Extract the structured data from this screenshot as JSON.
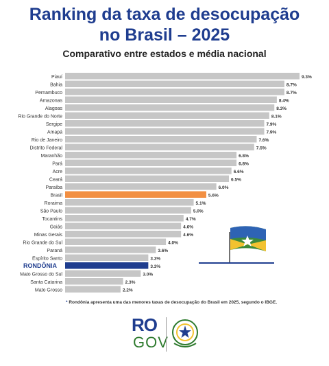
{
  "header": {
    "title_line1": "Ranking da taxa de desocupação",
    "title_line2": "no Brasil – 2025",
    "subtitle": "Comparativo entre estados e média nacional"
  },
  "footnote": {
    "marker": "*",
    "text": "Rondônia apresenta uma das menores taxas de desocupação do Brasil em 2025, segundo o IBGE."
  },
  "logo": {
    "ro": "RO",
    "gov": "GOV"
  },
  "colors": {
    "bar_default": "#c6c6c6",
    "bar_brasil": "#f28f42",
    "bar_rondonia": "#1f3d8f",
    "title": "#1f3d8f"
  },
  "chart_data": {
    "type": "bar",
    "orientation": "horizontal",
    "xlim": [
      0,
      9.3
    ],
    "grid": false,
    "value_suffix": "%",
    "categories": [
      "Piauí",
      "Bahia",
      "Pernambuco",
      "Amazonas",
      "Alagoas",
      "Rio Grande do Norte",
      "Sergipe",
      "Amapá",
      "Rio de Janeiro",
      "Distrito Federal",
      "Maranhão",
      "Pará",
      "Acre",
      "Ceará",
      "Paraíba",
      "Brasil",
      "Roraima",
      "São Paulo",
      "Tocantins",
      "Goiás",
      "Minas Gerais",
      "Rio Grande do Sul",
      "Paraná",
      "Espírito Santo",
      "RONDÔNIA",
      "Mato Grosso do Sul",
      "Santa Catarina",
      "Mato Grosso"
    ],
    "values": [
      9.3,
      8.7,
      8.7,
      8.4,
      8.3,
      8.1,
      7.9,
      7.9,
      7.6,
      7.5,
      6.8,
      6.8,
      6.6,
      6.5,
      6.0,
      5.6,
      5.1,
      5.0,
      4.7,
      4.6,
      4.6,
      4.0,
      3.6,
      3.3,
      3.3,
      3.0,
      2.3,
      2.2
    ],
    "labels": [
      "9.3%",
      "8.7%",
      "8.7%",
      "8.4%",
      "8.3%",
      "8.1%",
      "7.9%",
      "7.9%",
      "7.6%",
      "7.5%",
      "6.8%",
      "6.8%",
      "6.6%",
      "6.5%",
      "6.0%",
      "5.6%",
      "5.1%",
      "5.0%",
      "4.7%",
      "4.6%",
      "4.6%",
      "4.0%",
      "3.6%",
      "3.3%",
      "3.3%",
      "3.0%",
      "2.3%",
      "2.2%"
    ],
    "highlight": {
      "Brasil": "bar_brasil",
      "RONDÔNIA": "bar_rondonia"
    }
  }
}
